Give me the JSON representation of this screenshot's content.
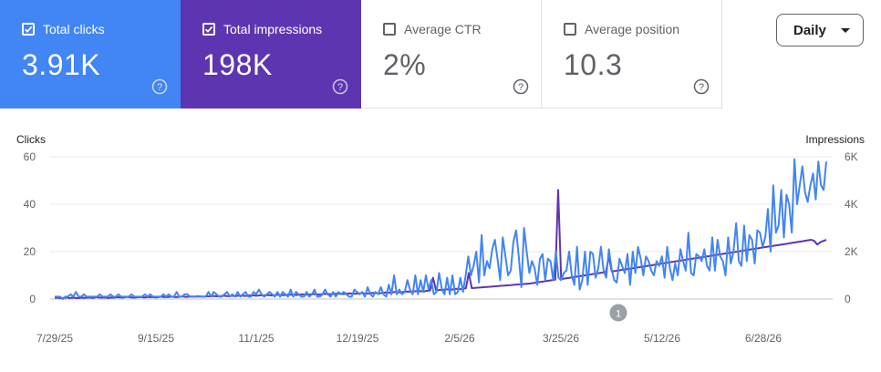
{
  "metrics": {
    "clicks": {
      "label": "Total clicks",
      "value": "3.91K",
      "checked": true,
      "color": "#4285f4"
    },
    "impressions": {
      "label": "Total impressions",
      "value": "198K",
      "checked": true,
      "color": "#5e35b1"
    },
    "ctr": {
      "label": "Average CTR",
      "value": "2%",
      "checked": false
    },
    "position": {
      "label": "Average position",
      "value": "10.3",
      "checked": false
    }
  },
  "granularity": {
    "selected": "Daily"
  },
  "chart_data": {
    "type": "line",
    "y_left_label": "Clicks",
    "y_right_label": "Impressions",
    "y_left_ticks": [
      "60",
      "40",
      "20",
      "0"
    ],
    "y_right_ticks": [
      "6K",
      "4K",
      "2K",
      "0"
    ],
    "ylim_left": [
      0,
      60
    ],
    "ylim_right": [
      0,
      6000
    ],
    "x_ticks": [
      "7/29/25",
      "9/15/25",
      "11/1/25",
      "12/19/25",
      "2/5/26",
      "3/25/26",
      "5/12/26",
      "6/28/26"
    ],
    "grid": true,
    "annotation_marker": "1",
    "series": [
      {
        "name": "Total clicks",
        "color": "#4285f4",
        "values": [
          1,
          1,
          1,
          0,
          1,
          1,
          2,
          1,
          3,
          1,
          1,
          2,
          1,
          1,
          1,
          1,
          1,
          2,
          1,
          1,
          1,
          2,
          1,
          1,
          2,
          1,
          1,
          1,
          1,
          2,
          1,
          1,
          1,
          1,
          2,
          1,
          2,
          1,
          1,
          1,
          1,
          2,
          1,
          2,
          1,
          1,
          3,
          1,
          1,
          2,
          2,
          1,
          1,
          1,
          1,
          1,
          1,
          1,
          3,
          1,
          3,
          2,
          1,
          1,
          2,
          3,
          1,
          2,
          1,
          3,
          1,
          2,
          3,
          1,
          1,
          3,
          2,
          4,
          2,
          1,
          2,
          3,
          2,
          1,
          3,
          1,
          3,
          2,
          1,
          4,
          1,
          3,
          2,
          1,
          1,
          3,
          1,
          2,
          4,
          1,
          1,
          2,
          4,
          2,
          1,
          3,
          1,
          3,
          2,
          3,
          2,
          1,
          1,
          4,
          3,
          2,
          3,
          1,
          5,
          2,
          1,
          3,
          2,
          5,
          2,
          1,
          6,
          2,
          10,
          2,
          4,
          2,
          3,
          8,
          4,
          2,
          10,
          2,
          8,
          3,
          10,
          4,
          8,
          2,
          3,
          11,
          4,
          2,
          9,
          2,
          10,
          2,
          3,
          9,
          3,
          10,
          18,
          10,
          14,
          20,
          7,
          27,
          10,
          16,
          13,
          21,
          25,
          17,
          8,
          26,
          18,
          10,
          12,
          24,
          29,
          18,
          5,
          30,
          20,
          11,
          16,
          13,
          6,
          17,
          19,
          8,
          17,
          16,
          8,
          20,
          9,
          8,
          11,
          12,
          20,
          10,
          6,
          22,
          4,
          8,
          20,
          6,
          20,
          19,
          9,
          13,
          22,
          12,
          9,
          21,
          13,
          8,
          7,
          17,
          14,
          11,
          19,
          6,
          20,
          11,
          22,
          17,
          10,
          18,
          16,
          12,
          10,
          16,
          14,
          18,
          9,
          22,
          13,
          8,
          15,
          10,
          21,
          16,
          12,
          28,
          11,
          10,
          19,
          18,
          16,
          21,
          14,
          12,
          26,
          12,
          25,
          18,
          16,
          10,
          26,
          15,
          20,
          32,
          16,
          14,
          31,
          16,
          27,
          25,
          15,
          29,
          28,
          22,
          26,
          38,
          20,
          48,
          28,
          31,
          46,
          26,
          44,
          40,
          28,
          59,
          40,
          48,
          56,
          45,
          41,
          48,
          53,
          42,
          58,
          48,
          46,
          58
        ]
      },
      {
        "name": "Total impressions",
        "color": "#5e35b1",
        "values": [
          50,
          60,
          40,
          50,
          70,
          40,
          60,
          50,
          40,
          60,
          50,
          70,
          60,
          50,
          80,
          60,
          70,
          60,
          50,
          70,
          60,
          80,
          70,
          60,
          90,
          80,
          70,
          60,
          80,
          90,
          70,
          80,
          90,
          80,
          70,
          90,
          100,
          80,
          90,
          100,
          90,
          80,
          100,
          110,
          90,
          100,
          110,
          100,
          120,
          110,
          100,
          120,
          110,
          130,
          120,
          110,
          130,
          140,
          120,
          130,
          140,
          130,
          150,
          140,
          130,
          150,
          160,
          150,
          140,
          160,
          150,
          170,
          160,
          150,
          170,
          180,
          170,
          160,
          180,
          190,
          180,
          170,
          190,
          200,
          190,
          180,
          200,
          210,
          200,
          190,
          210,
          220,
          210,
          200,
          220,
          230,
          220,
          210,
          230,
          240,
          230,
          220,
          240,
          250,
          240,
          230,
          250,
          260,
          250,
          240,
          260,
          280,
          270,
          260,
          300,
          290,
          280,
          300,
          320,
          310,
          300,
          330,
          340,
          330,
          320,
          350,
          360,
          900,
          370,
          380,
          390,
          400,
          410,
          390,
          420,
          430,
          410,
          440,
          450,
          1100,
          460,
          470,
          480,
          490,
          500,
          510,
          520,
          530,
          540,
          550,
          560,
          570,
          580,
          590,
          600,
          610,
          620,
          630,
          640,
          650,
          660,
          680,
          700,
          720,
          740,
          760,
          780,
          800,
          820,
          4600,
          850,
          860,
          880,
          900,
          920,
          940,
          960,
          980,
          1000,
          1020,
          1040,
          1060,
          1080,
          1100,
          1120,
          1140,
          1800,
          1160,
          1180,
          1200,
          1220,
          1240,
          1260,
          1280,
          1300,
          1320,
          1340,
          1360,
          1380,
          1400,
          1420,
          1440,
          1460,
          1480,
          1500,
          1520,
          1540,
          1560,
          1580,
          1600,
          1620,
          1640,
          1660,
          1680,
          1700,
          1720,
          1740,
          1760,
          1780,
          1800,
          1820,
          1840,
          1860,
          1880,
          1900,
          1920,
          1940,
          1960,
          1980,
          2000,
          2020,
          2040,
          2060,
          2080,
          2100,
          2120,
          2140,
          2160,
          2180,
          2200,
          2220,
          2240,
          2260,
          2280,
          2300,
          2320,
          2340,
          2360,
          2380,
          2400,
          2420,
          2440,
          2460,
          2480,
          2500,
          2450,
          2300,
          2400,
          2450,
          2500
        ]
      }
    ]
  }
}
